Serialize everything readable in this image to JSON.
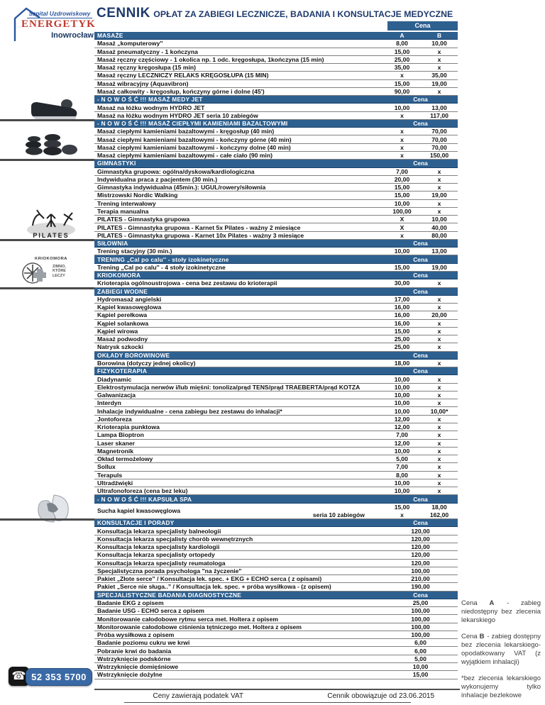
{
  "brand": {
    "line1": "Szpital Uzdrowiskowy",
    "line2": "ENERGETYK",
    "line3": "Inowrocław"
  },
  "title": {
    "lead": "CENNIK",
    "rest": "OPŁAT ZA ZABIEGI LECZNICZE, BADANIA I KONSULTACJE MEDYCZNE"
  },
  "table": {
    "price_header": "Cena",
    "col_a": "A",
    "col_b": "B",
    "sections": [
      {
        "label": "MASAŻE",
        "type": "ab",
        "rows": [
          {
            "label": "Masaż „komputerowy''",
            "a": "8,00",
            "b": "10,00"
          },
          {
            "label": "Masaż pneumatyczny  - 1 kończyna",
            "a": "15,00",
            "b": "x"
          },
          {
            "label": "Masaż ręczny częściowy - 1 okolica np. 1 odc. kręgosłupa, 1kończyna (15 min)",
            "a": "25,00",
            "b": "x"
          },
          {
            "label": "Masaż ręczny kręgosłupa (15 min)",
            "a": "35,00",
            "b": "x"
          },
          {
            "label": "Masaż ręczny LECZNICZY RELAKS KRĘGOSŁUPA (15 MIN)",
            "a": "x",
            "b": "35,00"
          },
          {
            "label": "Masaż wibracyjny (Aquavibron)",
            "a": "15,00",
            "b": "19,00"
          },
          {
            "label": "Masaż całkowity - kręgosłup, kończyny górne i dolne (45')",
            "a": "90,00",
            "b": "x"
          }
        ]
      },
      {
        "label": "- N O W O Ś Ć !!!  MASAŻ MEDY JET",
        "type": "cena",
        "rows": [
          {
            "label": "Masaż na łóżku wodnym HYDRO JET",
            "a": "10,00",
            "b": "13,00"
          },
          {
            "label": "Masaż na łóżku wodnym HYDRO JET seria 10 zabiegów",
            "a": "x",
            "b": "117,00"
          }
        ]
      },
      {
        "label": "- N O W O Ś Ć !!!  MASAŻ CIEPŁYMI KAMIENIAMI BAZALTOWYMI",
        "type": "cena",
        "rows": [
          {
            "label": "Masaż ciepłymi kamieniami bazaltowymi - kręgosłup (40 min)",
            "a": "x",
            "b": "70,00"
          },
          {
            "label": "Masaż ciepłymi kamieniami bazaltowymi - kończyny górne (40 min)",
            "a": "x",
            "b": "70,00"
          },
          {
            "label": "Masaż ciepłymi kamieniami bazaltowymi - kończyny dolne (40 min)",
            "a": "x",
            "b": "70,00"
          },
          {
            "label": "Masaż ciepłymi kamieniami bazaltowymi - całe ciało (90 min)",
            "a": "x",
            "b": "150,00"
          }
        ]
      },
      {
        "label": "GIMNASTYKI",
        "type": "cena",
        "rows": [
          {
            "label": "Gimnastyka grupowa: ogólna/dyskowa/kardiologiczna",
            "a": "7,00",
            "b": "x"
          },
          {
            "label": "Indywidualna praca z pacjentem (30 min.)",
            "a": "20,00",
            "b": "x"
          },
          {
            "label": "Gimnastyka indywidualna (45min.): UGUL/rowery/siłownia",
            "a": "15,00",
            "b": "x"
          },
          {
            "label": "Mistrzowski Nordic Walking",
            "a": "15,00",
            "b": "19,00"
          },
          {
            "label": "Trening interwałowy",
            "a": "10,00",
            "b": "x"
          },
          {
            "label": "Terapia manualna",
            "a": "100,00",
            "b": "x"
          },
          {
            "label": "PILATES - Gimnastyka grupowa",
            "a": "X",
            "b": "10,00"
          },
          {
            "label": "PILATES -  Gimnastyka grupowa - Karnet 5x Pilates - ważny 2 miesiące",
            "a": "X",
            "b": "40,00"
          },
          {
            "label": "PILATES -  Gimnastyka grupowa - Karnet 10x Pilates - ważny 3 miesiące",
            "a": "x",
            "b": "80,00"
          }
        ]
      },
      {
        "label": "SIŁOWNIA",
        "type": "cena",
        "rows": [
          {
            "label": "Trening stacyjny (30 min.)",
            "a": "10,00",
            "b": "13,00"
          }
        ]
      },
      {
        "label": "TRENING „Cal po calu'' - stoły izokinetyczne",
        "type": "cena",
        "rows": [
          {
            "label": "Trening „Cal po calu'' - 4 stoły  izokinetyczne",
            "a": "15,00",
            "b": "19,00"
          }
        ]
      },
      {
        "label": "KRIOKOMORA",
        "type": "cena",
        "rows": [
          {
            "label": "Krioterapia ogólnoustrojowa - cena bez zestawu do krioterapii",
            "a": "30,00",
            "b": "x"
          }
        ]
      },
      {
        "label": "ZABIEGI WODNE",
        "type": "cena",
        "rows": [
          {
            "label": "Hydromasaż angielski",
            "a": "17,00",
            "b": "x"
          },
          {
            "label": "Kąpiel kwasowęglowa",
            "a": "16,00",
            "b": "x"
          },
          {
            "label": "Kąpiel perełkowa",
            "a": "16,00",
            "b": "20,00"
          },
          {
            "label": "Kąpiel solankowa",
            "a": "16,00",
            "b": "x"
          },
          {
            "label": "Kąpiel wirowa",
            "a": "15,00",
            "b": "x"
          },
          {
            "label": "Masaż podwodny",
            "a": "25,00",
            "b": "x"
          },
          {
            "label": "Natrysk szkocki",
            "a": "25,00",
            "b": "x"
          }
        ]
      },
      {
        "label": "OKŁADY BOROWINOWE",
        "type": "cena",
        "rows": [
          {
            "label": "Borowina (dotyczy jednej okolicy)",
            "a": "18,00",
            "b": "x"
          }
        ]
      },
      {
        "label": "FIZYKOTERAPIA",
        "type": "cena",
        "rows": [
          {
            "label": "Diadynamic",
            "a": "10,00",
            "b": "x"
          },
          {
            "label": "Elektrostymulacja nerwów i/lub mięśni: tonoliza/prąd TENS/prąd TRAEBERTA/prąd KOTZA",
            "a": "10,00",
            "b": "x"
          },
          {
            "label": "Galwanizacja",
            "a": "10,00",
            "b": "x"
          },
          {
            "label": "Interdyn",
            "a": "10,00",
            "b": "x"
          },
          {
            "label": "Inhalacje indywidualne - cena zabiegu bez zestawu do inhalacji*",
            "a": "10,00",
            "b": "10,00*"
          },
          {
            "label": "Jontoforeza",
            "a": "12,00",
            "b": "x"
          },
          {
            "label": "Krioterapia punktowa",
            "a": "12,00",
            "b": "x"
          },
          {
            "label": "Lampa Bioptron",
            "a": "7,00",
            "b": "x"
          },
          {
            "label": "Laser skaner",
            "a": "12,00",
            "b": "x"
          },
          {
            "label": "Magnetronik",
            "a": "10,00",
            "b": "x"
          },
          {
            "label": "Okład termożelowy",
            "a": "5,00",
            "b": "x"
          },
          {
            "label": "Sollux",
            "a": "7,00",
            "b": "x"
          },
          {
            "label": "Terapuls",
            "a": "8,00",
            "b": "x"
          },
          {
            "label": "Ultradźwięki",
            "a": "10,00",
            "b": "x"
          },
          {
            "label": "Ultrafonoforeza (cena bez leku)",
            "a": "10,00",
            "b": "x"
          }
        ]
      },
      {
        "label": "- N O W O Ś Ć !!!  KAPSUŁA SPA",
        "type": "cena",
        "rows": [
          {
            "label": "Sucha kąpiel kwasowęglowa",
            "sub": "seria 10 zabiegów",
            "a1": "15,00",
            "b1": "18,00",
            "a2": "x",
            "b2": "162,00"
          }
        ]
      },
      {
        "label": "KONSULTACJE I PORADY",
        "type": "cena",
        "rows": [
          {
            "label": "Konsultacja lekarza specjalisty balneologii",
            "price": "120,00"
          },
          {
            "label": "Konsultacja lekarza specjalisty chorób wewnętrznych",
            "price": "120,00"
          },
          {
            "label": "Konsultacja lekarza specjalisty kardiologii",
            "price": "120,00"
          },
          {
            "label": "Konsultacja lekarza specjalisty ortopedy",
            "price": "120,00"
          },
          {
            "label": "Konsultacja lekarza specjalisty reumatologa",
            "price": "120,00"
          },
          {
            "label": "Specjalistyczna porada psychologa \"na życzenie\"",
            "price": "100,00"
          },
          {
            "label": "Pakiet „Złote serce” / Konsultacja lek. spec. + EKG + ECHO serca ( z opisami)",
            "price": "210,00"
          },
          {
            "label": "Pakiet „Serce nie sługa..” / Konsultacja lek. spec. + próba wysiłkowa - (z opisem)",
            "price": "190,00"
          }
        ]
      },
      {
        "label": "SPECJALISTYCZNE BADANIA DIAGNOSTYCZNE",
        "type": "cena",
        "rows": [
          {
            "label": "Badanie EKG z opisem",
            "price": "25,00"
          },
          {
            "label": "Badanie USG - ECHO serca z opisem",
            "price": "100,00"
          },
          {
            "label": "Monitorowanie całodobowe rytmu serca met. Holtera z opisem",
            "price": "100,00"
          },
          {
            "label": "Monitorowanie całodobowe ciśnienia tętniczego met. Holtera z opisem",
            "price": "100,00"
          },
          {
            "label": "Próba wysiłkowa z opisem",
            "price": "100,00"
          },
          {
            "label": "Badanie poziomu cukru we krwi",
            "price": "6,00"
          },
          {
            "label": "Pobranie krwi  do badania",
            "price": "6,00"
          },
          {
            "label": "Wstrzyknięcie podskórne",
            "price": "5,00"
          },
          {
            "label": "Wstrzyknięcie domięśniowe",
            "price": "10,00"
          },
          {
            "label": "Wstrzyknięcie dożylne",
            "price": "15,00"
          }
        ]
      }
    ]
  },
  "sidebar": {
    "pilates_label": "PILATES",
    "kriokomora_title": "KRIOKOMORA",
    "kriokomora_sub": "ZIMNO, KTÓRE LECZY",
    "phone_icon": "☎",
    "phone_number": "52 353 5700"
  },
  "notes": [
    {
      "prefix": "Cena ",
      "letter": "A",
      "text": " - zabieg niedostępny bez zlecenia lekarskiego"
    },
    {
      "prefix": "Cena ",
      "letter": "B",
      "text": " - zabieg dostępny bez zlecenia lekarskiego- opodatkowany VAT (z wyjątkiem inhalacji)"
    },
    {
      "prefix": "",
      "letter": "",
      "text": "*bez zlecenia lekarskiego wykonujemy tylko inhalacje bezlekowe"
    }
  ],
  "footer": {
    "left": "Ceny zawierają podatek VAT",
    "right": "Cennik obowiązuje od 23.06.2015"
  },
  "colors": {
    "header_blue": "#2e608f",
    "title_navy": "#1e3a6d",
    "brand_red": "#bf3a2f",
    "phone_blue": "#3a6aa6"
  }
}
